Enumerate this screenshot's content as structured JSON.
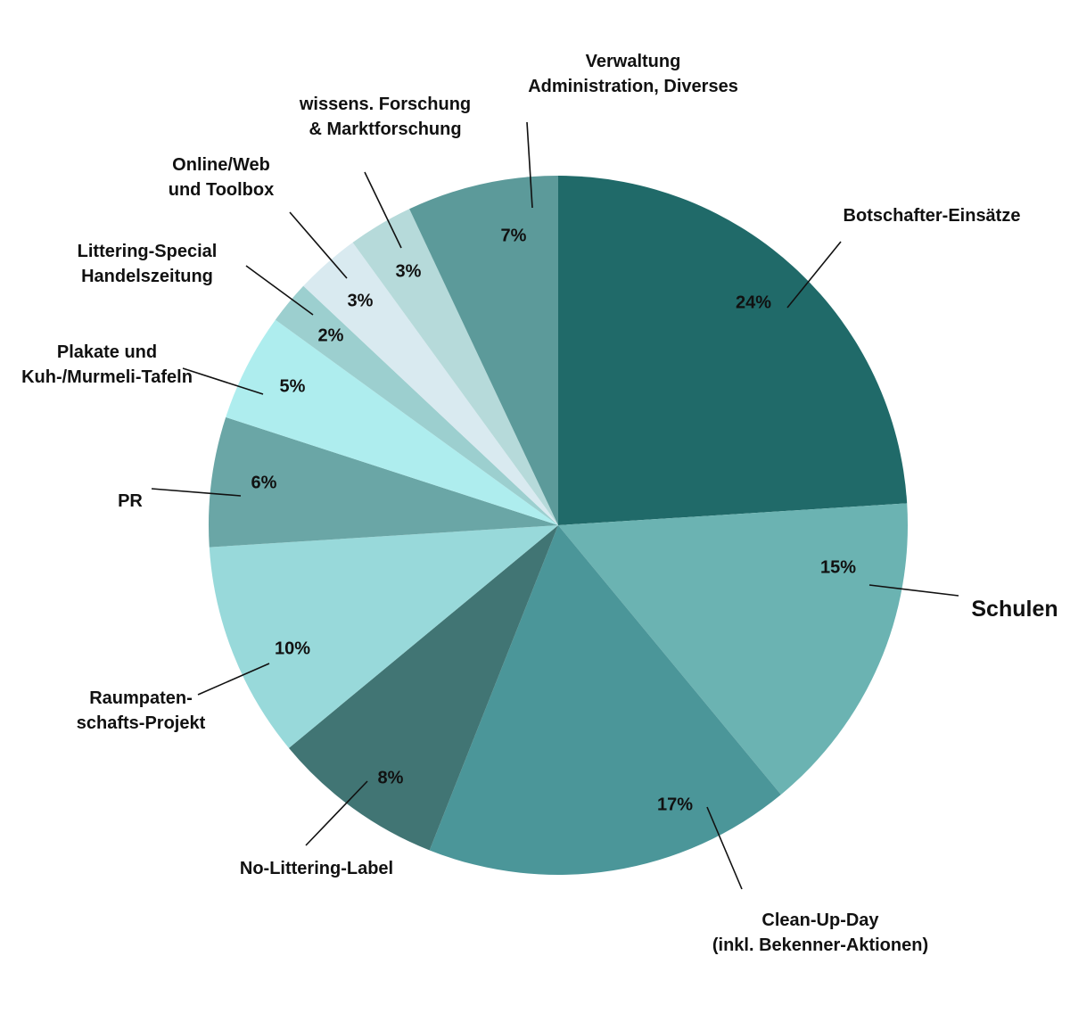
{
  "chart_data": {
    "type": "pie",
    "start_angle_deg": 0,
    "direction": "clockwise",
    "slices": [
      {
        "label": "Botschafter-Einsätze",
        "value": 24,
        "value_label": "24%",
        "color": "#206a69"
      },
      {
        "label": "Schulen",
        "value": 15,
        "value_label": "15%",
        "color": "#6bb3b2"
      },
      {
        "label": "Clean-Up-Day\n(inkl. Bekenner-Aktionen)",
        "value": 17,
        "value_label": "17%",
        "color": "#4b9699"
      },
      {
        "label": "No-Littering-Label",
        "value": 8,
        "value_label": "8%",
        "color": "#417574"
      },
      {
        "label": "Raumpaten-\nschafts-Projekt",
        "value": 10,
        "value_label": "10%",
        "color": "#98d9da"
      },
      {
        "label": "PR",
        "value": 6,
        "value_label": "6%",
        "color": "#6aa6a6"
      },
      {
        "label": "Plakate und\nKuh-/Murmeli-Tafeln",
        "value": 5,
        "value_label": "5%",
        "color": "#aeedee"
      },
      {
        "label": "Littering-Special\nHandelszeitung",
        "value": 2,
        "value_label": "2%",
        "color": "#9ccfcf"
      },
      {
        "label": "Online/Web\nund Toolbox",
        "value": 3,
        "value_label": "3%",
        "color": "#d9eaf0"
      },
      {
        "label": "wissens. Forschung\n& Marktforschung",
        "value": 3,
        "value_label": "3%",
        "color": "#b6dada"
      },
      {
        "label": "Verwaltung\nAdministration, Diverses",
        "value": 7,
        "value_label": "7%",
        "color": "#5c9a9a"
      }
    ]
  }
}
